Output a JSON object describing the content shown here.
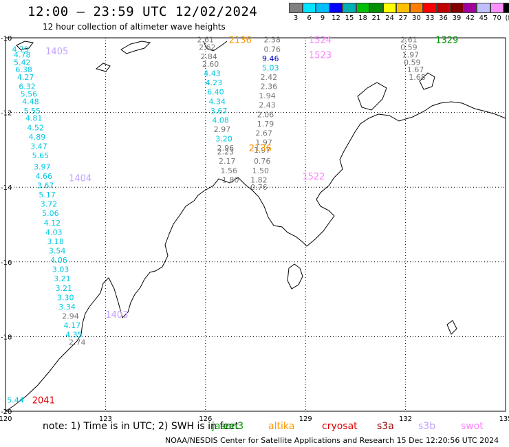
{
  "header": {
    "title": "12:00 — 23:59 UTC 12/02/2024",
    "subtitle": "12 hour collection of altimeter wave heights"
  },
  "scale": {
    "colors": [
      "#808080",
      "#00e5ff",
      "#00bfff",
      "#0000ff",
      "#00b0b0",
      "#00c000",
      "#009000",
      "#ffff00",
      "#ffc000",
      "#ff8000",
      "#ff0000",
      "#c00000",
      "#800000",
      "#a000a0",
      "#c0c0ff",
      "#ff90ff",
      "#000000"
    ],
    "labels": [
      "3",
      "6",
      "9",
      "12",
      "15",
      "18",
      "21",
      "24",
      "27",
      "30",
      "33",
      "36",
      "39",
      "42",
      "45",
      "70",
      "(ft)"
    ]
  },
  "map": {
    "lon_range": [
      120,
      135
    ],
    "lat_range": [
      -20,
      -10
    ],
    "lon_ticks": [
      "120",
      "123",
      "126",
      "129",
      "132",
      "135"
    ],
    "lat_ticks": [
      "-10",
      "-12",
      "-14",
      "-16",
      "-18",
      "-20"
    ]
  },
  "passes": [
    {
      "label": "1405",
      "lon": 121.2,
      "lat": -10.35,
      "color": "#c0a0ff"
    },
    {
      "label": "1404",
      "lon": 121.9,
      "lat": -13.75,
      "color": "#c0a0ff"
    },
    {
      "label": "1403",
      "lon": 123.0,
      "lat": -17.4,
      "color": "#c0a0ff"
    },
    {
      "label": "2041",
      "lon": 120.8,
      "lat": -19.7,
      "color": "#dd0000"
    },
    {
      "label": "2136",
      "lon": 126.7,
      "lat": -10.05,
      "color": "#ff9900"
    },
    {
      "label": "2136",
      "lon": 127.3,
      "lat": -12.95,
      "color": "#ff9900"
    },
    {
      "label": "1524",
      "lon": 129.1,
      "lat": -10.05,
      "color": "#ff80ff"
    },
    {
      "label": "1523",
      "lon": 129.1,
      "lat": -10.45,
      "color": "#ff80ff"
    },
    {
      "label": "1522",
      "lon": 128.9,
      "lat": -13.7,
      "color": "#ff80ff"
    },
    {
      "label": "1329",
      "lon": 132.9,
      "lat": -10.05,
      "color": "#009900"
    }
  ],
  "wave_tracks": [
    {
      "name": "west",
      "points": [
        {
          "v": "4.79",
          "lon": 120.45,
          "lat": -10.3,
          "c": "#00c8e0"
        },
        {
          "v": "4.78",
          "lon": 120.5,
          "lat": -10.45,
          "c": "#00c8e0"
        },
        {
          "v": "5.42",
          "lon": 120.5,
          "lat": -10.65,
          "c": "#00c8e0"
        },
        {
          "v": "6.38",
          "lon": 120.55,
          "lat": -10.85,
          "c": "#00c8e0"
        },
        {
          "v": "4.27",
          "lon": 120.6,
          "lat": -11.05,
          "c": "#00c8e0"
        },
        {
          "v": "6.32",
          "lon": 120.65,
          "lat": -11.3,
          "c": "#00c8e0"
        },
        {
          "v": "5.56",
          "lon": 120.7,
          "lat": -11.5,
          "c": "#00c8e0"
        },
        {
          "v": "4.48",
          "lon": 120.75,
          "lat": -11.7,
          "c": "#00c8e0"
        },
        {
          "v": "5.55",
          "lon": 120.8,
          "lat": -11.95,
          "c": "#00c8e0"
        },
        {
          "v": "4.81",
          "lon": 120.85,
          "lat": -12.15,
          "c": "#00c8e0"
        },
        {
          "v": "4.52",
          "lon": 120.9,
          "lat": -12.4,
          "c": "#00c8e0"
        },
        {
          "v": "4.89",
          "lon": 120.95,
          "lat": -12.65,
          "c": "#00c8e0"
        },
        {
          "v": "3.47",
          "lon": 121.0,
          "lat": -12.9,
          "c": "#00c8e0"
        },
        {
          "v": "5.65",
          "lon": 121.05,
          "lat": -13.15,
          "c": "#00c8e0"
        },
        {
          "v": "3.97",
          "lon": 121.1,
          "lat": -13.45,
          "c": "#00c8e0"
        },
        {
          "v": "4.66",
          "lon": 121.15,
          "lat": -13.7,
          "c": "#00c8e0"
        },
        {
          "v": "3.67",
          "lon": 121.2,
          "lat": -13.95,
          "c": "#00c8e0"
        },
        {
          "v": "5.17",
          "lon": 121.25,
          "lat": -14.2,
          "c": "#00c8e0"
        },
        {
          "v": "3.72",
          "lon": 121.3,
          "lat": -14.45,
          "c": "#00c8e0"
        },
        {
          "v": "5.06",
          "lon": 121.35,
          "lat": -14.7,
          "c": "#00c8e0"
        },
        {
          "v": "4.12",
          "lon": 121.4,
          "lat": -14.95,
          "c": "#00c8e0"
        },
        {
          "v": "4.03",
          "lon": 121.45,
          "lat": -15.2,
          "c": "#00c8e0"
        },
        {
          "v": "3.18",
          "lon": 121.5,
          "lat": -15.45,
          "c": "#00c8e0"
        },
        {
          "v": "3.54",
          "lon": 121.55,
          "lat": -15.7,
          "c": "#00c8e0"
        },
        {
          "v": "4.06",
          "lon": 121.6,
          "lat": -15.95,
          "c": "#00c8e0"
        },
        {
          "v": "3.03",
          "lon": 121.65,
          "lat": -16.2,
          "c": "#00c8e0"
        },
        {
          "v": "3.21",
          "lon": 121.7,
          "lat": -16.45,
          "c": "#00c8e0"
        },
        {
          "v": "3.21",
          "lon": 121.75,
          "lat": -16.7,
          "c": "#00c8e0"
        },
        {
          "v": "3.30",
          "lon": 121.8,
          "lat": -16.95,
          "c": "#00c8e0"
        },
        {
          "v": "3.34",
          "lon": 121.85,
          "lat": -17.2,
          "c": "#00c8e0"
        },
        {
          "v": "2.94",
          "lon": 121.95,
          "lat": -17.45,
          "c": "#777777"
        },
        {
          "v": "4.17",
          "lon": 122.0,
          "lat": -17.7,
          "c": "#00c8e0"
        },
        {
          "v": "4.35",
          "lon": 122.05,
          "lat": -17.95,
          "c": "#00c8e0"
        },
        {
          "v": "2.74",
          "lon": 122.15,
          "lat": -18.15,
          "c": "#777777"
        },
        {
          "v": "5.44",
          "lon": 120.3,
          "lat": -19.7,
          "c": "#00c8e0"
        }
      ]
    },
    {
      "name": "middle-west",
      "points": [
        {
          "v": "2.61",
          "lon": 126.0,
          "lat": -10.05,
          "c": "#777777"
        },
        {
          "v": "2.62",
          "lon": 126.05,
          "lat": -10.25,
          "c": "#777777"
        },
        {
          "v": "2.84",
          "lon": 126.1,
          "lat": -10.5,
          "c": "#777777"
        },
        {
          "v": "2.60",
          "lon": 126.15,
          "lat": -10.7,
          "c": "#777777"
        },
        {
          "v": "4.43",
          "lon": 126.2,
          "lat": -10.95,
          "c": "#00c8e0"
        },
        {
          "v": "4.23",
          "lon": 126.25,
          "lat": -11.2,
          "c": "#00c8e0"
        },
        {
          "v": "6.40",
          "lon": 126.3,
          "lat": -11.45,
          "c": "#00c8e0"
        },
        {
          "v": "4.34",
          "lon": 126.35,
          "lat": -11.7,
          "c": "#00c8e0"
        },
        {
          "v": "3.67",
          "lon": 126.4,
          "lat": -11.95,
          "c": "#00c8e0"
        },
        {
          "v": "4.08",
          "lon": 126.45,
          "lat": -12.2,
          "c": "#00c8e0"
        },
        {
          "v": "2.97",
          "lon": 126.5,
          "lat": -12.45,
          "c": "#777777"
        },
        {
          "v": "3.20",
          "lon": 126.55,
          "lat": -12.7,
          "c": "#00c8e0"
        },
        {
          "v": "2.96",
          "lon": 126.6,
          "lat": -12.95,
          "c": "#777777"
        },
        {
          "v": "2.23",
          "lon": 126.6,
          "lat": -13.05,
          "c": "#777777"
        },
        {
          "v": "2.17",
          "lon": 126.65,
          "lat": -13.3,
          "c": "#777777"
        },
        {
          "v": "1.56",
          "lon": 126.7,
          "lat": -13.55,
          "c": "#777777"
        },
        {
          "v": "1.80",
          "lon": 126.75,
          "lat": -13.8,
          "c": "#777777"
        }
      ]
    },
    {
      "name": "middle-east",
      "points": [
        {
          "v": "2.38",
          "lon": 128.0,
          "lat": -10.05,
          "c": "#777777"
        },
        {
          "v": "0.76",
          "lon": 128.0,
          "lat": -10.3,
          "c": "#777777"
        },
        {
          "v": "9.46",
          "lon": 127.95,
          "lat": -10.55,
          "c": "#0000cc"
        },
        {
          "v": "5.03",
          "lon": 127.95,
          "lat": -10.8,
          "c": "#00c8e0"
        },
        {
          "v": "2.42",
          "lon": 127.9,
          "lat": -11.05,
          "c": "#777777"
        },
        {
          "v": "2.36",
          "lon": 127.9,
          "lat": -11.3,
          "c": "#777777"
        },
        {
          "v": "1.94",
          "lon": 127.85,
          "lat": -11.55,
          "c": "#777777"
        },
        {
          "v": "2.43",
          "lon": 127.85,
          "lat": -11.8,
          "c": "#777777"
        },
        {
          "v": "2.06",
          "lon": 127.8,
          "lat": -12.05,
          "c": "#777777"
        },
        {
          "v": "1.79",
          "lon": 127.8,
          "lat": -12.3,
          "c": "#777777"
        },
        {
          "v": "2.67",
          "lon": 127.75,
          "lat": -12.55,
          "c": "#777777"
        },
        {
          "v": "1.97",
          "lon": 127.75,
          "lat": -12.8,
          "c": "#777777"
        },
        {
          "v": "1.97",
          "lon": 127.7,
          "lat": -13.0,
          "c": "#777777"
        },
        {
          "v": "0.76",
          "lon": 127.7,
          "lat": -13.3,
          "c": "#777777"
        },
        {
          "v": "1.50",
          "lon": 127.65,
          "lat": -13.55,
          "c": "#777777"
        },
        {
          "v": "1.82",
          "lon": 127.6,
          "lat": -13.8,
          "c": "#777777"
        },
        {
          "v": "0.76",
          "lon": 127.6,
          "lat": -14.0,
          "c": "#777777"
        }
      ]
    },
    {
      "name": "east",
      "points": [
        {
          "v": "2.61",
          "lon": 132.1,
          "lat": -10.05,
          "c": "#777777"
        },
        {
          "v": "0.59",
          "lon": 132.1,
          "lat": -10.25,
          "c": "#777777"
        },
        {
          "v": "1.97",
          "lon": 132.15,
          "lat": -10.45,
          "c": "#777777"
        },
        {
          "v": "0.59",
          "lon": 132.2,
          "lat": -10.65,
          "c": "#777777"
        },
        {
          "v": "1.67",
          "lon": 132.3,
          "lat": -10.85,
          "c": "#777777"
        },
        {
          "v": "1.68",
          "lon": 132.35,
          "lat": -11.05,
          "c": "#777777"
        }
      ]
    }
  ],
  "footer": {
    "note": "note: 1) Time is in UTC; 2) SWH is in feet",
    "satellites": [
      {
        "label": "jason3",
        "color": "#009900"
      },
      {
        "label": "altika",
        "color": "#ff9900"
      },
      {
        "label": "cryosat",
        "color": "#dd0000"
      },
      {
        "label": "s3a",
        "color": "#990000"
      },
      {
        "label": "s3b",
        "color": "#c0a0ff"
      },
      {
        "label": "swot",
        "color": "#ff80ff"
      }
    ],
    "credit": "NOAA/NESDIS Center for Satellite Applications and Research    15 Dec 12:20:56 UTC 2024"
  }
}
